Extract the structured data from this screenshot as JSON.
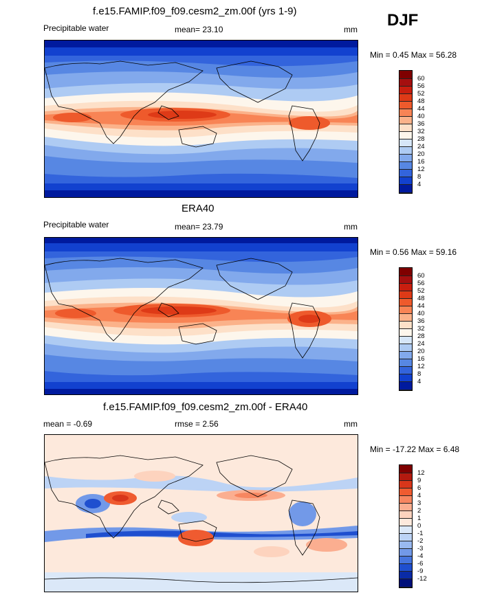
{
  "season_label": "DJF",
  "panels": [
    {
      "title": "f.e15.FAMIP.f09_f09.cesm2_zm.00f (yrs 1-9)",
      "left_label": "Precipitable water",
      "mid_label": "mean=  23.10",
      "right_label": "mm",
      "minmax": "Min =   0.45 Max =  56.28",
      "cbar_labels": [
        "60",
        "56",
        "52",
        "48",
        "44",
        "40",
        "36",
        "32",
        "28",
        "24",
        "20",
        "16",
        "12",
        "8",
        "4"
      ]
    },
    {
      "title": "ERA40",
      "left_label": "Precipitable water",
      "mid_label": "mean=  23.79",
      "right_label": "mm",
      "minmax": "Min =   0.56 Max =  59.16",
      "cbar_labels": [
        "60",
        "56",
        "52",
        "48",
        "44",
        "40",
        "36",
        "32",
        "28",
        "24",
        "20",
        "16",
        "12",
        "8",
        "4"
      ]
    },
    {
      "title": "f.e15.FAMIP.f09_f09.cesm2_zm.00f - ERA40",
      "left_label": "mean =  -0.69",
      "mid_label": "rmse =   2.56",
      "right_label": "mm",
      "minmax": "Min = -17.22 Max =   6.48",
      "cbar_labels": [
        "12",
        "9",
        "6",
        "4",
        "3",
        "2",
        "1",
        "0",
        "-1",
        "-2",
        "-3",
        "-4",
        "-6",
        "-9",
        "-12"
      ]
    }
  ],
  "colors": {
    "full_scale": [
      "#7f0000",
      "#a50f0f",
      "#c81e0f",
      "#de3a17",
      "#ee5a2c",
      "#f88455",
      "#fbb28a",
      "#fde0c8",
      "#fdf6ec",
      "#d6e6f8",
      "#aecbf3",
      "#82a9ec",
      "#5787e3",
      "#3364dc",
      "#1241cf",
      "#001a9e"
    ],
    "diff_scale": [
      "#7f0000",
      "#b31a0f",
      "#d8361a",
      "#ef5b30",
      "#f78660",
      "#fbae90",
      "#fdd3be",
      "#fde9dc",
      "#dbe8f8",
      "#bcd3f5",
      "#99b9f0",
      "#7299e8",
      "#4675de",
      "#1f4fcf",
      "#0a2ba6",
      "#00107a"
    ]
  }
}
